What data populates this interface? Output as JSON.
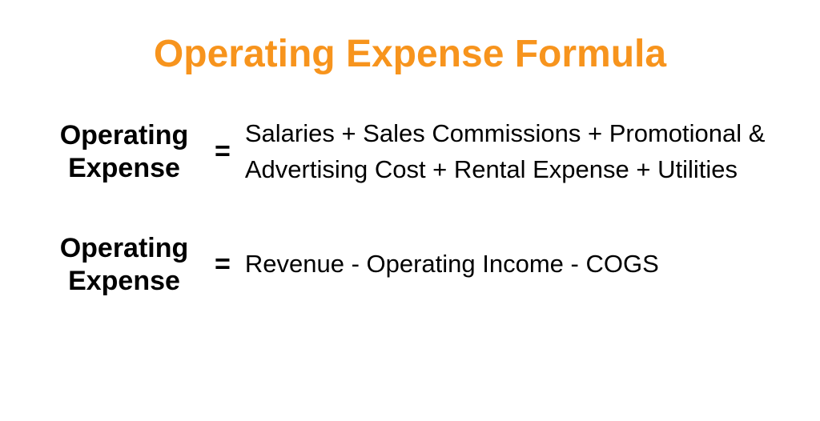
{
  "title": "Operating Expense Formula",
  "title_color": "#f7941d",
  "title_fontsize": 48,
  "background_color": "#ffffff",
  "text_color": "#000000",
  "formulas": [
    {
      "lhs_line1": "Operating",
      "lhs_line2": "Expense",
      "equals": "=",
      "rhs": "Salaries + Sales Commissions + Promotional & Advertising Cost + Rental Expense + Utilities",
      "lhs_fontsize": 34,
      "rhs_fontsize": 31
    },
    {
      "lhs_line1": "Operating",
      "lhs_line2": "Expense",
      "equals": "=",
      "rhs": "Revenue - Operating Income - COGS",
      "lhs_fontsize": 34,
      "rhs_fontsize": 31
    }
  ]
}
